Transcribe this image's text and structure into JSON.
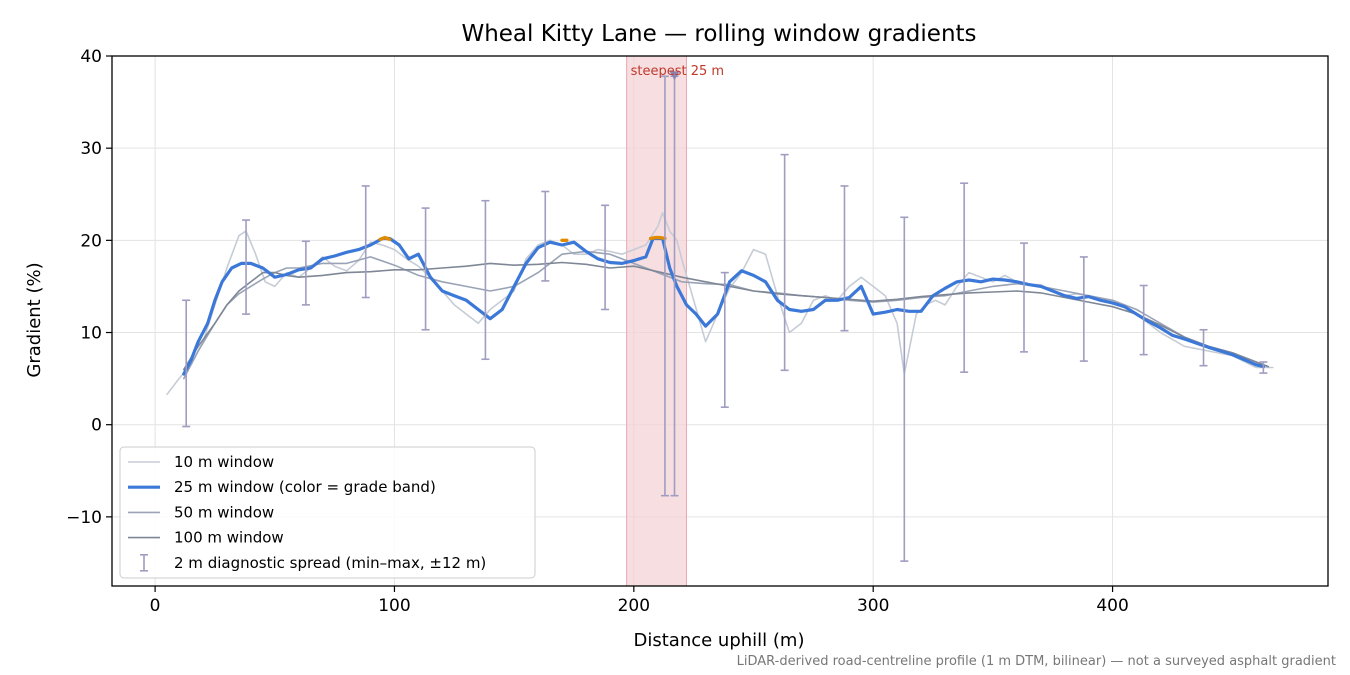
{
  "chart_data": {
    "type": "line",
    "title": "Wheal Kitty Lane — rolling window gradients",
    "xlabel": "Distance uphill (m)",
    "ylabel": "Gradient (%)",
    "xlim": [
      -18,
      490
    ],
    "ylim": [
      -17.5,
      40
    ],
    "xticks": [
      0,
      100,
      200,
      300,
      400
    ],
    "yticks": [
      -10,
      0,
      10,
      20,
      30,
      40
    ],
    "xtick_labels": [
      "0",
      "100",
      "200",
      "300",
      "400"
    ],
    "ytick_labels": [
      "−10",
      "0",
      "10",
      "20",
      "30",
      "40"
    ],
    "grid": true,
    "legend_position": "lower-left",
    "footnote": "LiDAR-derived road-centreline profile (1 m DTM, bilinear) — not a surveyed asphalt gradient",
    "annotation": {
      "text": "steepest 25 m",
      "x_range": [
        197,
        222
      ],
      "marker_x": 217,
      "marker_y": 37.8,
      "color": "#c0392b"
    },
    "colors": {
      "w10": "#c6ccd6",
      "w25": "#3b78d8",
      "w25_high_band": "#e08a00",
      "w50": "#9aa3b5",
      "w100": "#7f8796",
      "errorbars": "#9f9dc0",
      "highlight_band": "#f2d0d4"
    },
    "series": [
      {
        "name": "10 m window",
        "x": [
          5,
          10,
          15,
          20,
          25,
          30,
          35,
          38,
          42,
          46,
          50,
          55,
          60,
          65,
          70,
          75,
          80,
          85,
          90,
          95,
          100,
          105,
          110,
          115,
          120,
          125,
          130,
          135,
          140,
          145,
          150,
          155,
          160,
          165,
          170,
          175,
          180,
          185,
          190,
          195,
          200,
          205,
          210,
          212,
          215,
          218,
          220,
          225,
          230,
          235,
          240,
          245,
          250,
          255,
          260,
          265,
          270,
          275,
          280,
          285,
          290,
          295,
          300,
          305,
          310,
          313,
          318,
          322,
          326,
          330,
          335,
          340,
          345,
          350,
          355,
          360,
          365,
          370,
          375,
          380,
          385,
          390,
          395,
          400,
          410,
          420,
          430,
          440,
          450,
          460,
          467
        ],
        "y": [
          3.3,
          5,
          6.5,
          9,
          13,
          17,
          20.5,
          21,
          18.5,
          15.5,
          15,
          16.5,
          16,
          17,
          18.2,
          17.2,
          16.7,
          17.8,
          19.8,
          19.5,
          19,
          18,
          17.2,
          16,
          14.5,
          13,
          12,
          11,
          12.5,
          13.5,
          14.5,
          18,
          19.5,
          20,
          19.5,
          18.5,
          18.5,
          19,
          18.8,
          18.5,
          19,
          19.5,
          21.5,
          23,
          21,
          20,
          18,
          13.5,
          9,
          12,
          14.8,
          16.5,
          19,
          18.5,
          14,
          10,
          11,
          13.5,
          14,
          13.5,
          15,
          16,
          15,
          14,
          11,
          5.5,
          12,
          13,
          13.5,
          13,
          15,
          16.5,
          16,
          15.5,
          16.2,
          15.5,
          15.2,
          15.2,
          14.5,
          14,
          14.2,
          14,
          13.5,
          13.5,
          12,
          10,
          8.5,
          8,
          7.5,
          6.2,
          6.2
        ]
      },
      {
        "name": "25 m window (color = grade band)",
        "x": [
          12,
          15,
          18,
          22,
          25,
          28,
          32,
          36,
          40,
          45,
          50,
          55,
          60,
          65,
          70,
          75,
          80,
          85,
          90,
          95,
          98,
          102,
          106,
          110,
          115,
          120,
          125,
          130,
          135,
          140,
          145,
          150,
          155,
          160,
          165,
          170,
          175,
          180,
          185,
          190,
          195,
          200,
          205,
          208,
          212,
          215,
          218,
          222,
          226,
          230,
          235,
          240,
          245,
          250,
          255,
          260,
          265,
          270,
          275,
          280,
          285,
          290,
          295,
          300,
          305,
          310,
          315,
          320,
          325,
          330,
          335,
          340,
          345,
          350,
          355,
          360,
          365,
          370,
          375,
          380,
          385,
          390,
          395,
          400,
          405,
          410,
          415,
          420,
          425,
          430,
          440,
          450,
          460,
          463
        ],
        "y": [
          5.5,
          7,
          9,
          11,
          13.5,
          15.5,
          17,
          17.5,
          17.5,
          17,
          16,
          16.3,
          16.8,
          17,
          18,
          18.3,
          18.7,
          19,
          19.5,
          20.2,
          20.2,
          19.5,
          18,
          18.5,
          16,
          14.5,
          14,
          13.5,
          12.5,
          11.5,
          12.5,
          15,
          17.5,
          19.2,
          19.8,
          19.5,
          19.8,
          18.8,
          18,
          17.6,
          17.5,
          17.8,
          18.2,
          20.2,
          20.2,
          17,
          15,
          13,
          12,
          10.7,
          12,
          15.5,
          16.7,
          16.2,
          15.5,
          13.5,
          12.5,
          12.3,
          12.5,
          13.5,
          13.5,
          13.8,
          15,
          12,
          12.2,
          12.5,
          12.3,
          12.3,
          14,
          14.8,
          15.5,
          15.7,
          15.5,
          15.8,
          15.7,
          15.5,
          15.2,
          15,
          14.5,
          14,
          13.7,
          13.9,
          13.5,
          13.2,
          12.8,
          12,
          11.2,
          10.5,
          9.7,
          9.3,
          8.4,
          7.6,
          6.5,
          6.3
        ]
      },
      {
        "name": "50 m window",
        "x": [
          12,
          18,
          25,
          30,
          35,
          40,
          45,
          50,
          55,
          60,
          70,
          80,
          90,
          100,
          110,
          120,
          130,
          140,
          150,
          160,
          170,
          180,
          190,
          200,
          210,
          220,
          230,
          240,
          250,
          260,
          270,
          280,
          290,
          300,
          310,
          320,
          330,
          340,
          350,
          360,
          370,
          380,
          390,
          400,
          410,
          420,
          430,
          440,
          450,
          460,
          465
        ],
        "y": [
          5,
          8,
          11,
          13,
          14.2,
          15,
          15.8,
          16.5,
          17,
          17,
          17.5,
          17.5,
          18.2,
          17.3,
          16.2,
          15.5,
          15,
          14.5,
          15,
          16.5,
          18.5,
          18.8,
          18.5,
          17.5,
          16.5,
          15.5,
          15.3,
          15.2,
          14.5,
          14.3,
          14,
          13.8,
          13.5,
          13.3,
          13.5,
          13.8,
          14,
          14.5,
          15,
          15.3,
          15,
          14.5,
          14,
          13.5,
          12.5,
          11,
          9.5,
          8.5,
          7.8,
          6.8,
          6.3
        ]
      },
      {
        "name": "100 m window",
        "x": [
          12,
          18,
          25,
          30,
          35,
          40,
          45,
          50,
          55,
          60,
          70,
          80,
          90,
          100,
          110,
          120,
          130,
          140,
          150,
          160,
          170,
          180,
          190,
          200,
          210,
          220,
          230,
          240,
          250,
          260,
          270,
          280,
          290,
          300,
          310,
          320,
          330,
          340,
          350,
          360,
          370,
          380,
          390,
          400,
          410,
          420,
          430,
          440,
          450,
          460,
          465
        ],
        "y": [
          6,
          8.5,
          11,
          13,
          14.5,
          15.5,
          16.5,
          16.5,
          16.2,
          16,
          16.2,
          16.5,
          16.6,
          16.8,
          16.8,
          17,
          17.2,
          17.5,
          17.3,
          17.4,
          17.6,
          17.4,
          17,
          17.2,
          16.6,
          16,
          15.5,
          15,
          14.5,
          14.2,
          14,
          13.8,
          13.6,
          13.4,
          13.6,
          13.9,
          14.1,
          14.3,
          14.4,
          14.5,
          14.3,
          13.8,
          13.3,
          12.8,
          12,
          10.8,
          9.5,
          8.5,
          7.8,
          6.8,
          6.3
        ]
      }
    ],
    "errorbars": {
      "name": "2 m diagnostic spread (min–max, ±12 m)",
      "x": [
        13,
        38,
        63,
        88,
        113,
        138,
        163,
        188,
        213,
        217,
        238,
        263,
        288,
        313,
        338,
        363,
        388,
        413,
        438,
        463
      ],
      "low": [
        -0.2,
        12,
        13,
        13.8,
        10.3,
        7.1,
        15.6,
        12.5,
        -7.7,
        -7.7,
        1.9,
        5.9,
        10.2,
        -14.8,
        5.7,
        7.9,
        6.9,
        7.6,
        6.4,
        5.6
      ],
      "high": [
        13.5,
        22.2,
        19.9,
        25.9,
        23.5,
        24.3,
        25.3,
        23.8,
        37.8,
        37.8,
        16.5,
        29.3,
        25.9,
        22.5,
        26.2,
        19.7,
        18.2,
        15.1,
        10.3,
        6.8
      ]
    },
    "high_band_points": [
      {
        "x": [
          94,
          96,
          98
        ],
        "y": [
          20.1,
          20.3,
          20.1
        ]
      },
      {
        "x": [
          170,
          172
        ],
        "y": [
          20,
          20
        ]
      },
      {
        "x": [
          207,
          209,
          211,
          213
        ],
        "y": [
          20.2,
          20.3,
          20.3,
          20.2
        ]
      }
    ]
  }
}
